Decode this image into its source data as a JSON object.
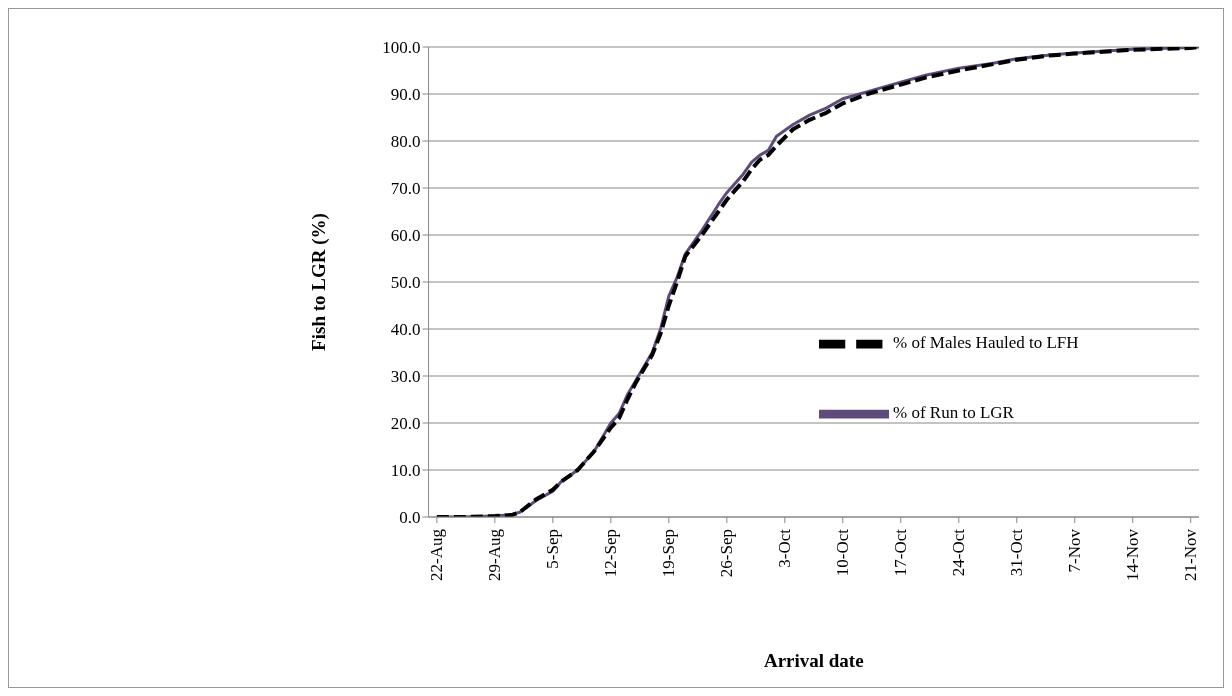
{
  "chart_data": {
    "type": "line",
    "xlabel": "Arrival date",
    "ylabel": "Fish to LGR (%)",
    "x": [
      "--08-22",
      "--08-25",
      "--08-29",
      "--08-31",
      "--09-01",
      "--09-03",
      "--09-05",
      "--09-06",
      "--09-08",
      "--09-10",
      "--09-12",
      "--09-13",
      "--09-14",
      "--09-15",
      "--09-16",
      "--09-17",
      "--09-18",
      "--09-19",
      "--09-20",
      "--09-21",
      "--09-23",
      "--09-25",
      "--09-26",
      "--09-28",
      "--09-29",
      "--09-30",
      "--10-01",
      "--10-02",
      "--10-04",
      "--10-06",
      "--10-08",
      "--10-10",
      "--10-13",
      "--10-17",
      "--10-20",
      "--10-24",
      "--10-28",
      "--10-31",
      "--11-04",
      "--11-07",
      "--11-14",
      "--11-21",
      "--11-22"
    ],
    "series": [
      {
        "name": "% of Run to LGR",
        "color": "#5f4b7b",
        "line_style": "solid",
        "values": [
          0,
          0,
          0.2,
          0.5,
          1,
          3.5,
          5.5,
          7.5,
          10,
          14,
          20,
          22,
          26,
          29,
          32,
          35,
          40,
          47,
          51,
          56,
          61,
          66.5,
          69,
          73,
          75.5,
          77,
          78,
          81,
          83.5,
          85.5,
          87,
          89,
          90.5,
          92.5,
          94,
          95.5,
          96.5,
          97.5,
          98.3,
          98.7,
          99.5,
          99.9,
          100
        ]
      },
      {
        "name": "% of Males Hauled to LFH",
        "color": "#000000",
        "line_style": "dashed",
        "values": [
          0,
          0,
          0.2,
          0.4,
          1,
          3.8,
          5.8,
          7.5,
          10,
          14,
          19,
          21,
          25,
          28.5,
          31.5,
          34.5,
          39,
          45,
          50,
          55.5,
          60,
          65,
          67.5,
          71.5,
          74,
          76,
          77,
          79,
          82.5,
          84.5,
          86,
          88,
          90,
          92,
          93.5,
          95,
          96.3,
          97.3,
          98.2,
          98.6,
          99.4,
          99.8,
          100
        ]
      }
    ],
    "xlim": [
      "--08-21",
      "--11-22"
    ],
    "xticks": [
      {
        "value": "--08-22",
        "label": "22-Aug"
      },
      {
        "value": "--08-29",
        "label": "29-Aug"
      },
      {
        "value": "--09-05",
        "label": "5-Sep"
      },
      {
        "value": "--09-12",
        "label": "12-Sep"
      },
      {
        "value": "--09-19",
        "label": "19-Sep"
      },
      {
        "value": "--09-26",
        "label": "26-Sep"
      },
      {
        "value": "--10-03",
        "label": "3-Oct"
      },
      {
        "value": "--10-10",
        "label": "10-Oct"
      },
      {
        "value": "--10-17",
        "label": "17-Oct"
      },
      {
        "value": "--10-24",
        "label": "24-Oct"
      },
      {
        "value": "--10-31",
        "label": "31-Oct"
      },
      {
        "value": "--11-07",
        "label": "7-Nov"
      },
      {
        "value": "--11-14",
        "label": "14-Nov"
      },
      {
        "value": "--11-21",
        "label": "21-Nov"
      }
    ],
    "ylim": [
      0,
      100
    ],
    "yticks": [
      {
        "value": 0,
        "label": "0.0"
      },
      {
        "value": 10,
        "label": "10.0"
      },
      {
        "value": 20,
        "label": "20.0"
      },
      {
        "value": 30,
        "label": "30.0"
      },
      {
        "value": 40,
        "label": "40.0"
      },
      {
        "value": 50,
        "label": "50.0"
      },
      {
        "value": 60,
        "label": "60.0"
      },
      {
        "value": 70,
        "label": "70.0"
      },
      {
        "value": 80,
        "label": "80.0"
      },
      {
        "value": 90,
        "label": "90.0"
      },
      {
        "value": 100,
        "label": "100.0"
      }
    ],
    "grid": "y",
    "legend": "right",
    "marker": "none"
  }
}
